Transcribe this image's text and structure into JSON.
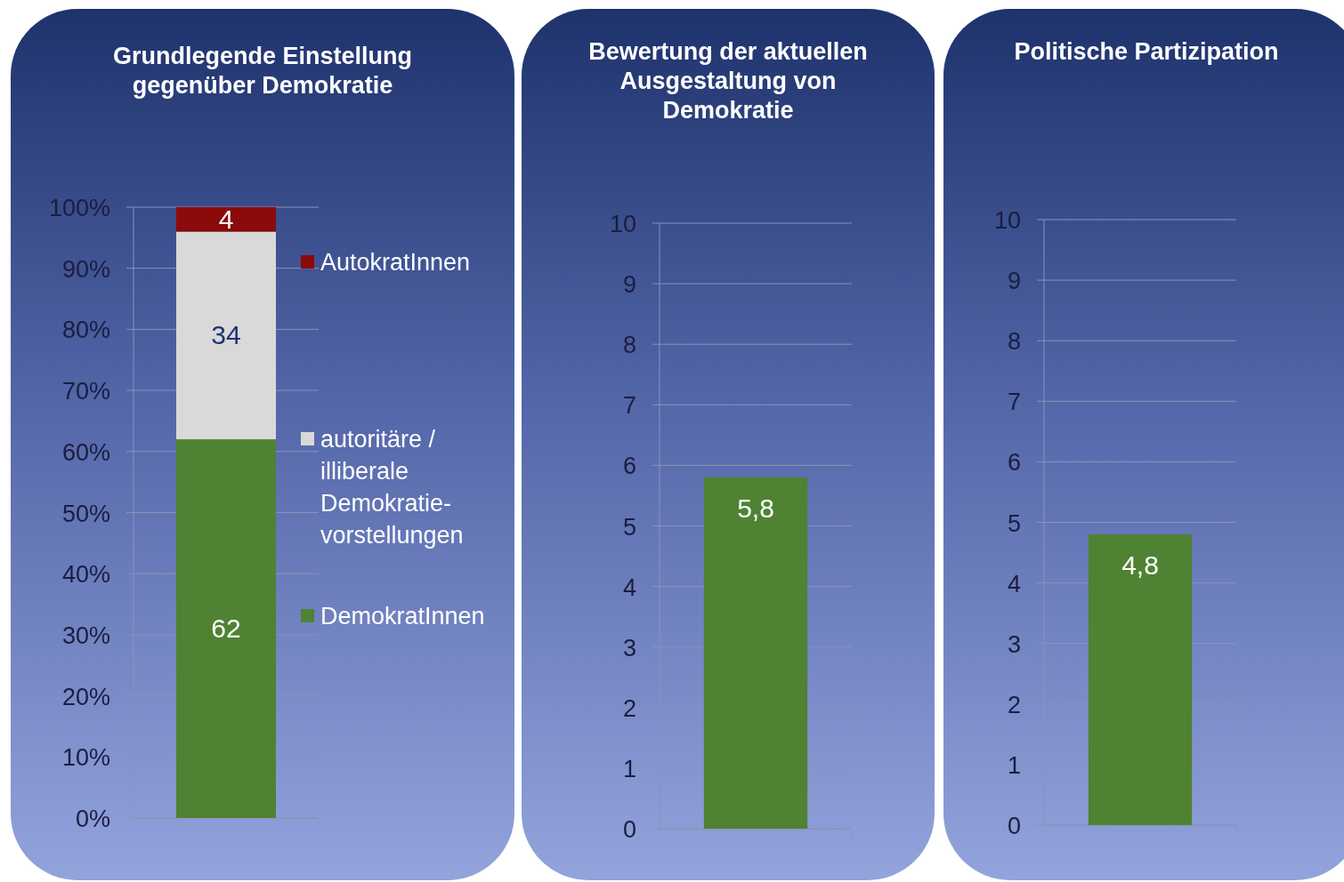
{
  "chart_data": [
    {
      "type": "bar",
      "title": "Grundlegende Einstellung gegenüber Demokratie",
      "categories": [
        null
      ],
      "stacked": true,
      "series": [
        {
          "name": "DemokratInnen",
          "color": "#4f8232",
          "values": [
            62
          ]
        },
        {
          "name": "autoritäre / illiberale Demokratie-vorstellungen",
          "color": "#d9d9d9",
          "values": [
            34
          ]
        },
        {
          "name": "AutokratInnen",
          "color": "#8b0a0a",
          "values": [
            4
          ]
        }
      ],
      "ylim": [
        0,
        100
      ],
      "yticks": [
        {
          "value": 0,
          "label": "0%"
        },
        {
          "value": 10,
          "label": "10%"
        },
        {
          "value": 20,
          "label": "20%"
        },
        {
          "value": 30,
          "label": "30%"
        },
        {
          "value": 40,
          "label": "40%"
        },
        {
          "value": 50,
          "label": "50%"
        },
        {
          "value": 60,
          "label": "60%"
        },
        {
          "value": 70,
          "label": "70%"
        },
        {
          "value": 80,
          "label": "80%"
        },
        {
          "value": 90,
          "label": "90%"
        },
        {
          "value": 100,
          "label": "100%"
        }
      ],
      "grid": "y",
      "legend": "right",
      "data_labels": true
    },
    {
      "type": "bar",
      "title": "Bewertung der aktuellen Ausgestaltung von Demokratie",
      "categories": [
        null
      ],
      "values": [
        5.8
      ],
      "color": "#4f8232",
      "value_labels": [
        "5,8"
      ],
      "ylim": [
        0,
        10
      ],
      "yticks": [
        0,
        1,
        2,
        3,
        4,
        5,
        6,
        7,
        8,
        9,
        10
      ],
      "grid": "y"
    },
    {
      "type": "bar",
      "title": "Politische Partizipation",
      "categories": [
        null
      ],
      "values": [
        4.8
      ],
      "color": "#4f8232",
      "value_labels": [
        "4,8"
      ],
      "ylim": [
        0,
        10
      ],
      "yticks": [
        0,
        1,
        2,
        3,
        4,
        5,
        6,
        7,
        8,
        9,
        10
      ],
      "grid": "y"
    }
  ]
}
